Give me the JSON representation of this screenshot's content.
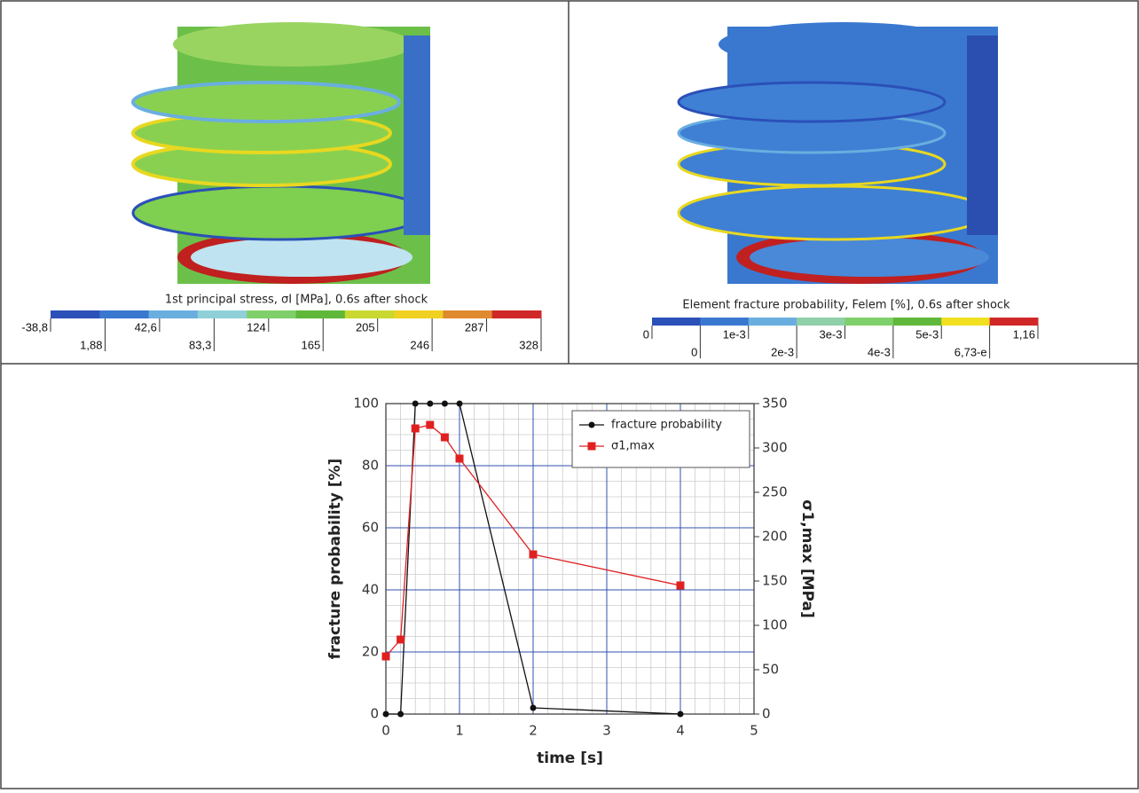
{
  "panels": [
    {
      "caption": "1st principal stress, σI [MPa], 0.6s after shock",
      "colorbar": {
        "labels": [
          "-38,8",
          "1,88",
          "42,6",
          "83,3",
          "124",
          "165",
          "205",
          "246",
          "287",
          "328"
        ],
        "colors": [
          "#2b50b8",
          "#3a78d0",
          "#6aaee0",
          "#8fd0d8",
          "#7fcf6a",
          "#5fb83a",
          "#c8d830",
          "#f0d020",
          "#e08a30",
          "#d02828"
        ]
      }
    },
    {
      "caption": "Element fracture probability, Felem [%], 0.6s after shock",
      "colorbar": {
        "labels": [
          "0",
          "0",
          "1e-3",
          "2e-3",
          "3e-3",
          "4e-3",
          "5e-3",
          "6,73-e",
          "1,16"
        ],
        "colors": [
          "#2b50b8",
          "#3a78d0",
          "#6aaee0",
          "#8fd0a8",
          "#7fcf6a",
          "#5fb83a",
          "#f0e020",
          "#d02828"
        ]
      }
    }
  ],
  "chart_data": {
    "type": "line",
    "xlabel": "time [s]",
    "ylabel": "fracture probability [%]",
    "y2label": "σ1,max [MPa]",
    "xlim": [
      0,
      5
    ],
    "xticks": [
      0,
      1,
      2,
      3,
      4,
      5
    ],
    "ylim": [
      0,
      100
    ],
    "yticks": [
      0,
      20,
      40,
      60,
      80,
      100
    ],
    "y2lim": [
      0,
      350
    ],
    "y2ticks": [
      0,
      50,
      100,
      150,
      200,
      250,
      300,
      350
    ],
    "grid": true,
    "legend": "upper right",
    "series": [
      {
        "name": "fracture probability",
        "color": "#111111",
        "marker": "circle",
        "x": [
          0,
          0.2,
          0.4,
          0.6,
          0.8,
          1,
          2,
          4
        ],
        "values": [
          0,
          0,
          100,
          100,
          100,
          100,
          2,
          0
        ]
      },
      {
        "name": "σ1,max",
        "color": "#e02020",
        "marker": "square",
        "axis": "y2",
        "x": [
          0,
          0.2,
          0.4,
          0.6,
          0.8,
          1,
          2,
          4
        ],
        "values": [
          65,
          84,
          322,
          326,
          312,
          288,
          180,
          145
        ]
      }
    ]
  }
}
